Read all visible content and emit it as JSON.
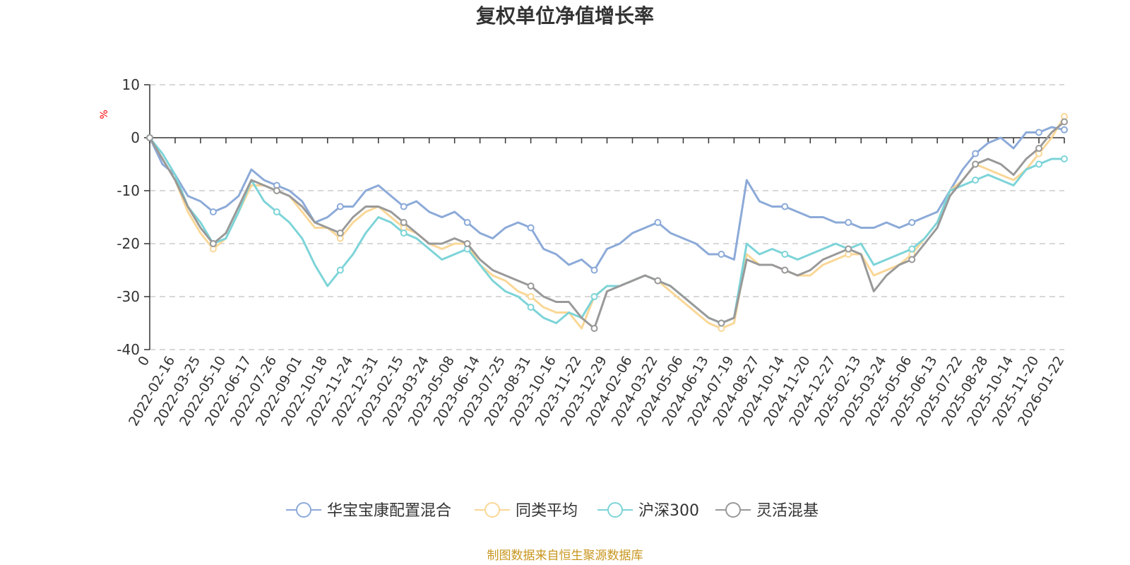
{
  "chart_data": {
    "type": "line",
    "title": "复权单位净值增长率",
    "ylabel": "%",
    "ylim": [
      -40,
      10
    ],
    "yticks": [
      10,
      0,
      -10,
      -20,
      -30,
      -40
    ],
    "grid": true,
    "legend_position": "bottom",
    "x_labels": [
      "0",
      "2022-02-16",
      "2022-03-25",
      "2022-05-10",
      "2022-06-17",
      "2022-07-26",
      "2022-09-01",
      "2022-10-18",
      "2022-11-24",
      "2022-12-31",
      "2023-02-15",
      "2023-03-24",
      "2023-05-08",
      "2023-06-14",
      "2023-07-25",
      "2023-08-31",
      "2023-10-16",
      "2023-11-22",
      "2023-12-29",
      "2024-02-06",
      "2024-03-22",
      "2024-05-06",
      "2024-06-13",
      "2024-07-19",
      "2024-08-27",
      "2024-10-14",
      "2024-11-20",
      "2024-12-27",
      "2025-02-13",
      "2025-03-24",
      "2025-05-06",
      "2025-06-13",
      "2025-07-22",
      "2025-08-28",
      "2025-10-14",
      "2025-11-20",
      "2026-01-22"
    ],
    "series": [
      {
        "name": "华宝宝康配置混合",
        "color": "#8caad8",
        "values": [
          0,
          -5,
          -7,
          -11,
          -12,
          -14,
          -13,
          -11,
          -6,
          -8,
          -9,
          -10,
          -12,
          -16,
          -15,
          -13,
          -13,
          -10,
          -9,
          -11,
          -13,
          -12,
          -14,
          -15,
          -14,
          -16,
          -18,
          -19,
          -17,
          -16,
          -17,
          -21,
          -22,
          -24,
          -23,
          -25,
          -21,
          -20,
          -18,
          -17,
          -16,
          -18,
          -19,
          -20,
          -22,
          -22,
          -23,
          -8,
          -12,
          -13,
          -13,
          -14,
          -15,
          -15,
          -16,
          -16,
          -17,
          -17,
          -16,
          -17,
          -16,
          -15,
          -14,
          -10,
          -6,
          -3,
          -1,
          0,
          -2,
          1,
          1,
          2,
          1.5
        ]
      },
      {
        "name": "同类平均",
        "color": "#fad797",
        "values": [
          0,
          -4,
          -8,
          -14,
          -18,
          -21,
          -19,
          -14,
          -9,
          -9,
          -10,
          -11,
          -14,
          -17,
          -17,
          -19,
          -16,
          -14,
          -13,
          -15,
          -17,
          -18,
          -20,
          -21,
          -20,
          -20,
          -24,
          -26,
          -27,
          -29,
          -30,
          -32,
          -33,
          -33,
          -36,
          -30,
          -28,
          -28,
          -27,
          -26,
          -27,
          -29,
          -31,
          -33,
          -35,
          -36,
          -35,
          -22,
          -24,
          -24,
          -25,
          -26,
          -26,
          -24,
          -23,
          -22,
          -22,
          -26,
          -25,
          -24,
          -22,
          -19,
          -16,
          -10,
          -8,
          -5,
          -6,
          -7,
          -8,
          -6,
          -3,
          0,
          4
        ]
      },
      {
        "name": "沪深300",
        "color": "#7dd4d8",
        "values": [
          0,
          -3,
          -7,
          -13,
          -16,
          -20,
          -19,
          -14,
          -8,
          -12,
          -14,
          -16,
          -19,
          -24,
          -28,
          -25,
          -22,
          -18,
          -15,
          -16,
          -18,
          -19,
          -21,
          -23,
          -22,
          -21,
          -24,
          -27,
          -29,
          -30,
          -32,
          -34,
          -35,
          -33,
          -34,
          -30,
          -28,
          -28,
          -27,
          -26,
          -27,
          -28,
          -30,
          -32,
          -34,
          -35,
          -34,
          -20,
          -22,
          -21,
          -22,
          -23,
          -22,
          -21,
          -20,
          -21,
          -20,
          -24,
          -23,
          -22,
          -21,
          -19,
          -16,
          -10,
          -9,
          -8,
          -7,
          -8,
          -9,
          -6,
          -5,
          -4,
          -4
        ]
      },
      {
        "name": "灵活混基",
        "color": "#999999",
        "values": [
          0,
          -4,
          -8,
          -13,
          -17,
          -20,
          -18,
          -13,
          -8,
          -9,
          -10,
          -11,
          -13,
          -16,
          -17,
          -18,
          -15,
          -13,
          -13,
          -14,
          -16,
          -18,
          -20,
          -20,
          -19,
          -20,
          -23,
          -25,
          -26,
          -27,
          -28,
          -30,
          -31,
          -31,
          -34,
          -36,
          -29,
          -28,
          -27,
          -26,
          -27,
          -28,
          -30,
          -32,
          -34,
          -35,
          -34,
          -23,
          -24,
          -24,
          -25,
          -26,
          -25,
          -23,
          -22,
          -21,
          -22,
          -29,
          -26,
          -24,
          -23,
          -20,
          -17,
          -11,
          -8,
          -5,
          -4,
          -5,
          -7,
          -4,
          -2,
          1,
          3
        ]
      }
    ]
  },
  "source_text": "制图数据来自恒生聚源数据库"
}
